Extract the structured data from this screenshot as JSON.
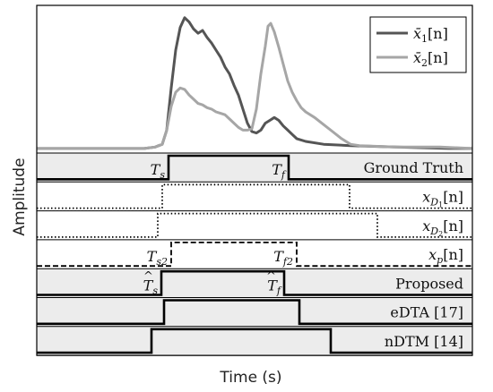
{
  "chart_data": {
    "type": "line",
    "xlabel": "Time (s)",
    "ylabel": "Amplitude",
    "legend_position": "top-right",
    "grid": false,
    "top_panel": {
      "series": [
        {
          "name": "x̄₁[n]",
          "legend_main": "x̄",
          "legend_sub": "1",
          "legend_tail": "[n]",
          "color": "#555555",
          "points": [
            [
              0,
              0.02
            ],
            [
              120,
              0.02
            ],
            [
              132,
              0.03
            ],
            [
              140,
              0.05
            ],
            [
              145,
              0.15
            ],
            [
              150,
              0.45
            ],
            [
              155,
              0.72
            ],
            [
              160,
              0.88
            ],
            [
              165,
              0.95
            ],
            [
              170,
              0.92
            ],
            [
              175,
              0.87
            ],
            [
              180,
              0.84
            ],
            [
              185,
              0.86
            ],
            [
              190,
              0.81
            ],
            [
              195,
              0.77
            ],
            [
              200,
              0.72
            ],
            [
              205,
              0.67
            ],
            [
              210,
              0.6
            ],
            [
              215,
              0.55
            ],
            [
              220,
              0.47
            ],
            [
              225,
              0.4
            ],
            [
              230,
              0.3
            ],
            [
              235,
              0.2
            ],
            [
              240,
              0.14
            ],
            [
              245,
              0.13
            ],
            [
              250,
              0.15
            ],
            [
              255,
              0.2
            ],
            [
              260,
              0.22
            ],
            [
              265,
              0.24
            ],
            [
              270,
              0.22
            ],
            [
              275,
              0.18
            ],
            [
              280,
              0.15
            ],
            [
              285,
              0.12
            ],
            [
              290,
              0.09
            ],
            [
              300,
              0.07
            ],
            [
              320,
              0.05
            ],
            [
              350,
              0.04
            ],
            [
              400,
              0.03
            ],
            [
              460,
              0.02
            ],
            [
              486,
              0.02
            ]
          ]
        },
        {
          "name": "x̄₂[n]",
          "legend_main": "x̄",
          "legend_sub": "2",
          "legend_tail": "[n]",
          "color": "#a6a6a6",
          "points": [
            [
              0,
              0.02
            ],
            [
              120,
              0.02
            ],
            [
              132,
              0.03
            ],
            [
              140,
              0.05
            ],
            [
              145,
              0.15
            ],
            [
              150,
              0.32
            ],
            [
              155,
              0.42
            ],
            [
              160,
              0.45
            ],
            [
              165,
              0.44
            ],
            [
              170,
              0.4
            ],
            [
              175,
              0.37
            ],
            [
              180,
              0.34
            ],
            [
              185,
              0.33
            ],
            [
              190,
              0.31
            ],
            [
              195,
              0.3
            ],
            [
              200,
              0.28
            ],
            [
              205,
              0.27
            ],
            [
              210,
              0.26
            ],
            [
              215,
              0.23
            ],
            [
              220,
              0.2
            ],
            [
              225,
              0.17
            ],
            [
              230,
              0.15
            ],
            [
              235,
              0.15
            ],
            [
              240,
              0.16
            ],
            [
              245,
              0.3
            ],
            [
              250,
              0.55
            ],
            [
              255,
              0.75
            ],
            [
              258,
              0.89
            ],
            [
              261,
              0.91
            ],
            [
              265,
              0.85
            ],
            [
              270,
              0.74
            ],
            [
              275,
              0.62
            ],
            [
              280,
              0.5
            ],
            [
              285,
              0.42
            ],
            [
              290,
              0.36
            ],
            [
              295,
              0.31
            ],
            [
              300,
              0.28
            ],
            [
              310,
              0.24
            ],
            [
              320,
              0.19
            ],
            [
              330,
              0.14
            ],
            [
              340,
              0.09
            ],
            [
              350,
              0.05
            ],
            [
              360,
              0.04
            ],
            [
              400,
              0.03
            ],
            [
              450,
              0.03
            ],
            [
              486,
              0.02
            ]
          ]
        }
      ]
    },
    "rows": [
      {
        "label": "Ground Truth",
        "style": "solid",
        "shaded": true,
        "rise": 147,
        "fall": 281,
        "annot": [
          {
            "base": "T",
            "sub": "s",
            "hat": false,
            "at": "rise"
          },
          {
            "base": "T",
            "sub": "f",
            "hat": false,
            "at": "fall"
          }
        ]
      },
      {
        "label_main": "x",
        "label_sub": "D",
        "label_subsub": "1",
        "label_tail": "[n]",
        "style": "dotted",
        "shaded": false,
        "rise": 140,
        "fall": 349
      },
      {
        "label_main": "x",
        "label_sub": "D",
        "label_subsub": "2",
        "label_tail": "[n]",
        "style": "dotted",
        "shaded": false,
        "rise": 135,
        "fall": 380
      },
      {
        "label_main": "x",
        "label_sub": "p",
        "label_subsub": "",
        "label_tail": "[n]",
        "style": "dashed",
        "shaded": false,
        "rise": 150,
        "fall": 290,
        "annot": [
          {
            "base": "T",
            "sub": "s2",
            "hat": false,
            "at": "rise"
          },
          {
            "base": "T",
            "sub": "f2",
            "hat": false,
            "at": "fall"
          }
        ]
      },
      {
        "label": "Proposed",
        "style": "solid",
        "shaded": true,
        "rise": 139,
        "fall": 276,
        "annot": [
          {
            "base": "T",
            "sub": "s",
            "hat": true,
            "at": "rise"
          },
          {
            "base": "T",
            "sub": "f",
            "hat": true,
            "at": "fall"
          }
        ]
      },
      {
        "label": "eDTA [17]",
        "style": "solid",
        "shaded": true,
        "rise": 142,
        "fall": 293
      },
      {
        "label": "nDTM [14]",
        "style": "solid",
        "shaded": true,
        "rise": 128,
        "fall": 328
      }
    ]
  }
}
